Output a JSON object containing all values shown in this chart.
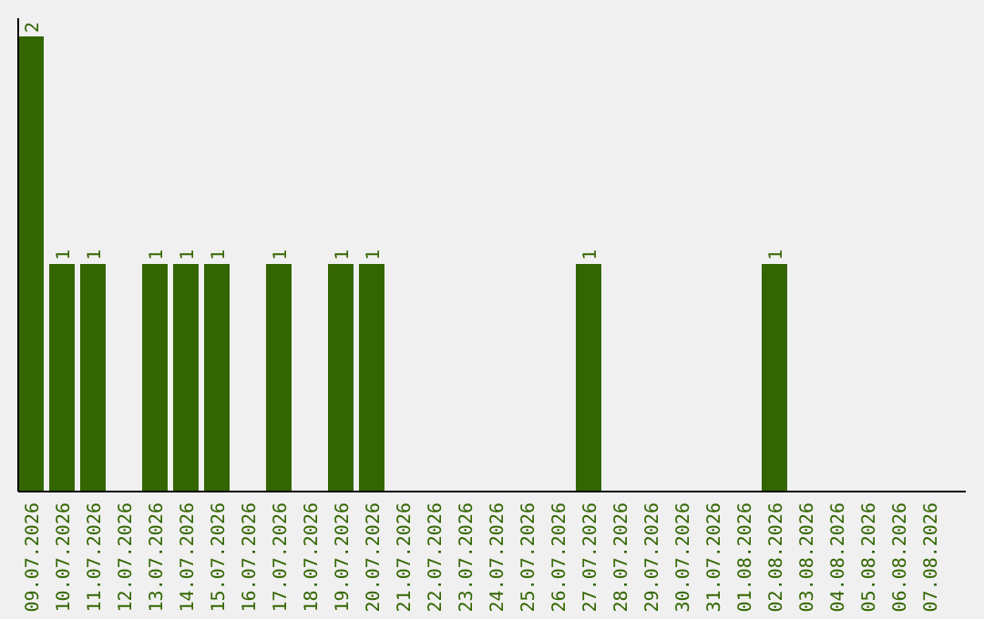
{
  "chart_data": {
    "type": "bar",
    "categories": [
      "09.07.2026",
      "10.07.2026",
      "11.07.2026",
      "12.07.2026",
      "13.07.2026",
      "14.07.2026",
      "15.07.2026",
      "16.07.2026",
      "17.07.2026",
      "18.07.2026",
      "19.07.2026",
      "20.07.2026",
      "21.07.2026",
      "22.07.2026",
      "23.07.2026",
      "24.07.2026",
      "25.07.2026",
      "26.07.2026",
      "27.07.2026",
      "28.07.2026",
      "29.07.2026",
      "30.07.2026",
      "31.07.2026",
      "01.08.2026",
      "02.08.2026",
      "03.08.2026",
      "04.08.2026",
      "05.08.2026",
      "06.08.2026",
      "07.08.2026"
    ],
    "values": [
      2,
      1,
      1,
      0,
      1,
      1,
      1,
      0,
      1,
      0,
      1,
      1,
      0,
      0,
      0,
      0,
      0,
      0,
      1,
      0,
      0,
      0,
      0,
      0,
      1,
      0,
      0,
      0,
      0,
      0
    ],
    "value_labels": [
      "2",
      "1",
      "1",
      null,
      "1",
      "1",
      "1",
      null,
      "1",
      null,
      "1",
      "1",
      null,
      null,
      null,
      null,
      null,
      null,
      "1",
      null,
      null,
      null,
      null,
      null,
      "1",
      null,
      null,
      null,
      null,
      null
    ],
    "color": "#336600"
  }
}
